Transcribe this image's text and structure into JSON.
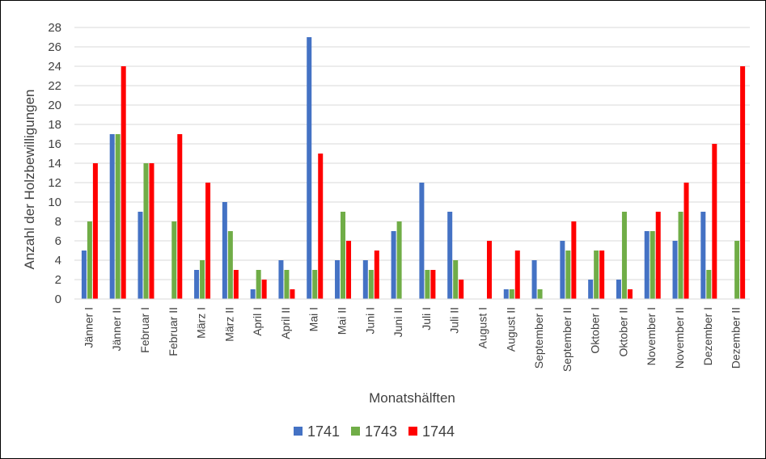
{
  "chart_data": {
    "type": "bar",
    "title": "",
    "xlabel": "Monatshälften",
    "ylabel": "Anzahl der Holzbewilligungen",
    "ylim": [
      0,
      28
    ],
    "yticks": [
      0,
      2,
      4,
      6,
      8,
      10,
      12,
      14,
      16,
      18,
      20,
      22,
      24,
      26,
      28
    ],
    "grid": true,
    "legend_position": "bottom",
    "categories": [
      "Jänner I",
      "Jänner II",
      "Februar I",
      "Februar II",
      "März I",
      "März II",
      "April I",
      "April II",
      "Mai I",
      "Mai II",
      "Juni I",
      "Juni II",
      "Juli I",
      "Juli II",
      "August I",
      "August II",
      "September I",
      "September II",
      "Oktober I",
      "Oktober II",
      "November I",
      "November II",
      "Dezember I",
      "Dezember II"
    ],
    "series": [
      {
        "name": "1741",
        "color": "#4472C4",
        "values": [
          5,
          17,
          9,
          0,
          3,
          10,
          1,
          4,
          27,
          4,
          4,
          7,
          12,
          9,
          0,
          1,
          4,
          6,
          2,
          2,
          7,
          6,
          9,
          0
        ]
      },
      {
        "name": "1743",
        "color": "#70AD47",
        "values": [
          8,
          17,
          14,
          8,
          4,
          7,
          3,
          3,
          3,
          9,
          3,
          8,
          3,
          4,
          0,
          1,
          1,
          5,
          5,
          9,
          7,
          9,
          3,
          6
        ]
      },
      {
        "name": "1744",
        "color": "#FF0000",
        "values": [
          14,
          24,
          14,
          17,
          12,
          3,
          2,
          1,
          15,
          6,
          5,
          0,
          3,
          2,
          6,
          5,
          0,
          8,
          5,
          1,
          9,
          12,
          16,
          24
        ]
      }
    ]
  }
}
